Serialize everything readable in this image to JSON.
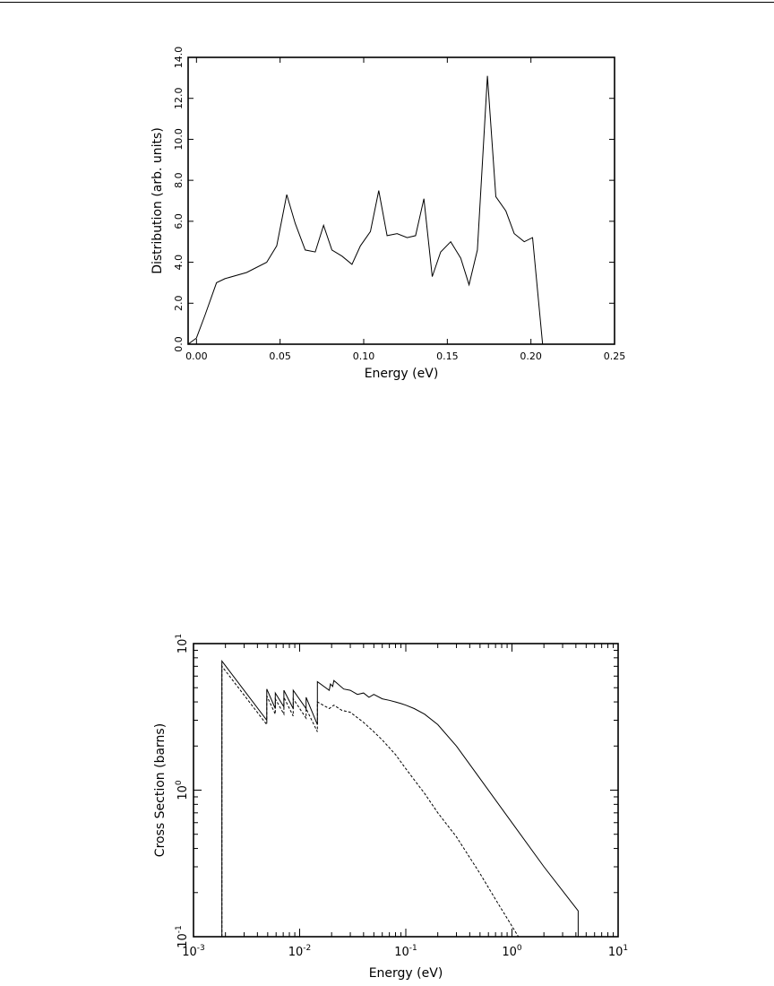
{
  "chart_data": [
    {
      "type": "line",
      "title": "",
      "xlabel": "Energy (eV)",
      "ylabel": "Distribution (arb. units)",
      "xlim": [
        -0.005,
        0.25
      ],
      "ylim": [
        0,
        14
      ],
      "x_ticks": [
        0.0,
        0.05,
        0.1,
        0.15,
        0.2,
        0.25
      ],
      "x_tick_labels": [
        "0.00",
        "0.05",
        "0.10",
        "0.15",
        "0.20",
        "0.25"
      ],
      "y_ticks": [
        0,
        2,
        4,
        6,
        8,
        10,
        12,
        14
      ],
      "y_tick_labels": [
        "0.0",
        "2.0",
        "4.0",
        "6.0",
        "8.0",
        "10.0",
        "12.0",
        "14.0"
      ],
      "grid": false,
      "series": [
        {
          "x": [
            -0.005,
            0.0,
            0.005,
            0.012,
            0.017,
            0.03,
            0.042,
            0.048,
            0.054,
            0.059,
            0.065,
            0.071,
            0.076,
            0.081,
            0.087,
            0.093,
            0.098,
            0.104,
            0.109,
            0.114,
            0.12,
            0.126,
            0.131,
            0.136,
            0.141,
            0.146,
            0.152,
            0.158,
            0.163,
            0.168,
            0.174,
            0.179,
            0.185,
            0.19,
            0.196,
            0.201,
            0.207
          ],
          "y": [
            0.0,
            0.3,
            1.4,
            3.0,
            3.2,
            3.5,
            4.0,
            4.8,
            7.3,
            5.9,
            4.6,
            4.5,
            5.8,
            4.6,
            4.3,
            3.9,
            4.8,
            5.5,
            7.5,
            5.3,
            5.4,
            5.2,
            5.3,
            7.1,
            3.3,
            4.5,
            5.0,
            4.2,
            2.9,
            4.6,
            13.1,
            7.2,
            6.5,
            5.4,
            5.0,
            5.2,
            0.0
          ],
          "style": "solid"
        }
      ]
    },
    {
      "type": "line",
      "title": "",
      "xlabel": "Energy (eV)",
      "ylabel": "Cross Section (barns)",
      "xscale": "log",
      "yscale": "log",
      "xlim": [
        0.001,
        10
      ],
      "ylim": [
        0.1,
        10
      ],
      "x_ticks": [
        0.001,
        0.01,
        0.1,
        1,
        10
      ],
      "x_tick_labels": [
        {
          "base": "10",
          "exp": "-3"
        },
        {
          "base": "10",
          "exp": "-2"
        },
        {
          "base": "10",
          "exp": "-1"
        },
        {
          "base": "10",
          "exp": "0"
        },
        {
          "base": "10",
          "exp": "1"
        }
      ],
      "y_ticks": [
        0.1,
        1,
        10
      ],
      "y_tick_labels": [
        {
          "base": "10",
          "exp": "-1"
        },
        {
          "base": "10",
          "exp": "0"
        },
        {
          "base": "10",
          "exp": "1"
        }
      ],
      "grid": false,
      "series": [
        {
          "style": "solid",
          "x": [
            0.00185,
            0.00185,
            0.0049,
            0.0049,
            0.0059,
            0.0059,
            0.0071,
            0.0071,
            0.0087,
            0.0087,
            0.0115,
            0.0115,
            0.0147,
            0.0147,
            0.019,
            0.0195,
            0.0205,
            0.021,
            0.026,
            0.03,
            0.035,
            0.04,
            0.045,
            0.05,
            0.06,
            0.07,
            0.08,
            0.09,
            0.1,
            0.12,
            0.15,
            0.2,
            0.3,
            0.5,
            1.0,
            2.0,
            4.2,
            4.2
          ],
          "y": [
            0.1,
            7.6,
            3.0,
            4.9,
            3.6,
            4.6,
            3.7,
            4.8,
            3.6,
            4.8,
            3.6,
            4.3,
            2.8,
            5.5,
            4.8,
            5.3,
            5.1,
            5.6,
            4.9,
            4.8,
            4.5,
            4.6,
            4.3,
            4.5,
            4.2,
            4.1,
            4.0,
            3.9,
            3.8,
            3.6,
            3.3,
            2.8,
            2.0,
            1.2,
            0.6,
            0.3,
            0.15,
            0.1
          ]
        },
        {
          "style": "dashed",
          "x": [
            0.00185,
            0.00185,
            0.0049,
            0.0049,
            0.0059,
            0.0059,
            0.0071,
            0.0071,
            0.0087,
            0.0087,
            0.0115,
            0.0115,
            0.0147,
            0.0147,
            0.019,
            0.021,
            0.025,
            0.03,
            0.04,
            0.05,
            0.06,
            0.08,
            0.1,
            0.15,
            0.2,
            0.3,
            0.5,
            0.7,
            1.15
          ],
          "y": [
            0.1,
            7.0,
            2.8,
            4.4,
            3.3,
            4.2,
            3.3,
            4.3,
            3.2,
            4.2,
            3.1,
            3.6,
            2.5,
            4.0,
            3.6,
            3.8,
            3.5,
            3.4,
            2.9,
            2.5,
            2.2,
            1.75,
            1.4,
            0.95,
            0.7,
            0.48,
            0.27,
            0.18,
            0.1
          ]
        }
      ]
    }
  ]
}
